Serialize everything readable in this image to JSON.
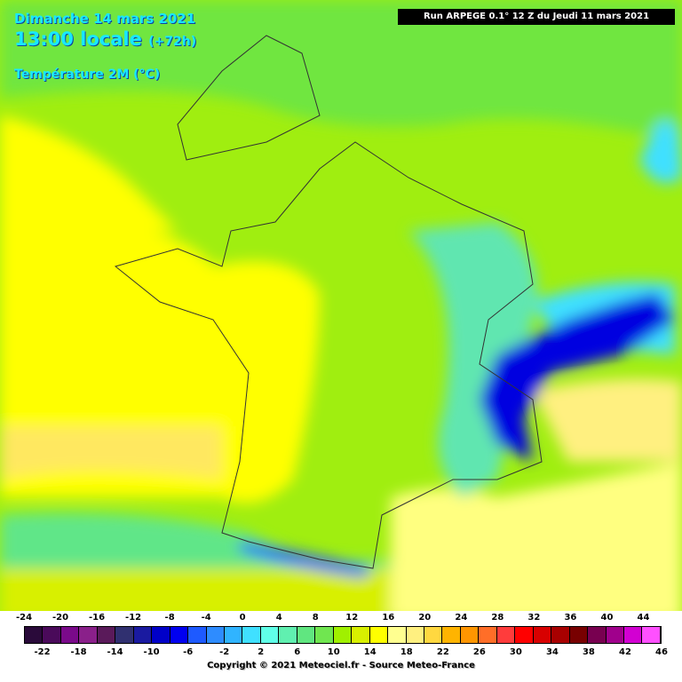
{
  "header": {
    "date": "Dimanche 14 mars 2021",
    "time": "13:00 locale",
    "lead": "(+72h)",
    "parameter": "Température 2M (°C)",
    "run": "Run ARPEGE 0.1° 12 Z du Jeudi 11 mars 2021"
  },
  "legend": {
    "labels": [
      -24,
      -22,
      -20,
      -18,
      -16,
      -14,
      -12,
      -10,
      -8,
      -6,
      -4,
      -2,
      0,
      2,
      4,
      6,
      8,
      10,
      12,
      14,
      16,
      18,
      20,
      22,
      24,
      26,
      28,
      30,
      32,
      34,
      36,
      38,
      40,
      42,
      44,
      46
    ],
    "colors": [
      "#2a0a3a",
      "#4a0a5a",
      "#7a0a8a",
      "#8a208a",
      "#5a1a5a",
      "#303070",
      "#1a1aa0",
      "#0000c8",
      "#0000f0",
      "#1e5aff",
      "#2e8cff",
      "#30b4ff",
      "#40e0ff",
      "#60ffe8",
      "#60f0b0",
      "#60e680",
      "#70e650",
      "#a0f000",
      "#d8f000",
      "#ffff00",
      "#ffff90",
      "#fff080",
      "#ffd840",
      "#ffb400",
      "#ff9600",
      "#ff6e28",
      "#ff3c3c",
      "#ff0000",
      "#d80000",
      "#a80000",
      "#780000",
      "#780050",
      "#a0008c",
      "#d200d2",
      "#ff50ff"
    ]
  },
  "footer": {
    "copyright": "Copyright © 2021 Meteociel.fr - Source Meteo-France"
  }
}
